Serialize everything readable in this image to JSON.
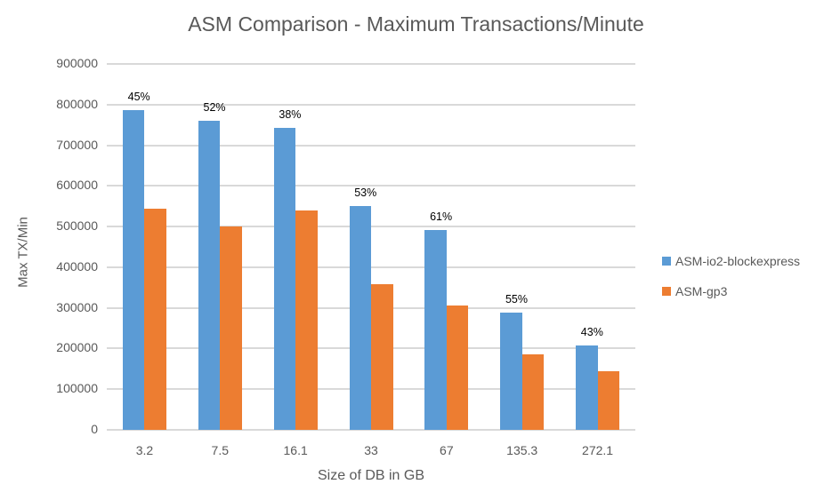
{
  "chart_data": {
    "type": "bar",
    "title": "ASM Comparison - Maximum Transactions/Minute",
    "xlabel": "Size of DB in GB",
    "ylabel": "Max TX/Min",
    "ylim": [
      0,
      900000
    ],
    "yticks": [
      "0",
      "100000",
      "200000",
      "300000",
      "400000",
      "500000",
      "600000",
      "700000",
      "800000",
      "900000"
    ],
    "grid": true,
    "legend_position": "right",
    "categories": [
      "3.2",
      "7.5",
      "16.1",
      "33",
      "67",
      "135.3",
      "272.1"
    ],
    "series": [
      {
        "name": "ASM-io2-blockexpress",
        "color": "#5b9bd5",
        "values": [
          786000,
          760000,
          743000,
          550000,
          491000,
          288000,
          208000
        ]
      },
      {
        "name": "ASM-gp3",
        "color": "#ed7d31",
        "values": [
          544000,
          500000,
          540000,
          358000,
          306000,
          186000,
          144000
        ]
      }
    ],
    "annotations": [
      "45%",
      "52%",
      "38%",
      "53%",
      "61%",
      "55%",
      "43%"
    ]
  }
}
